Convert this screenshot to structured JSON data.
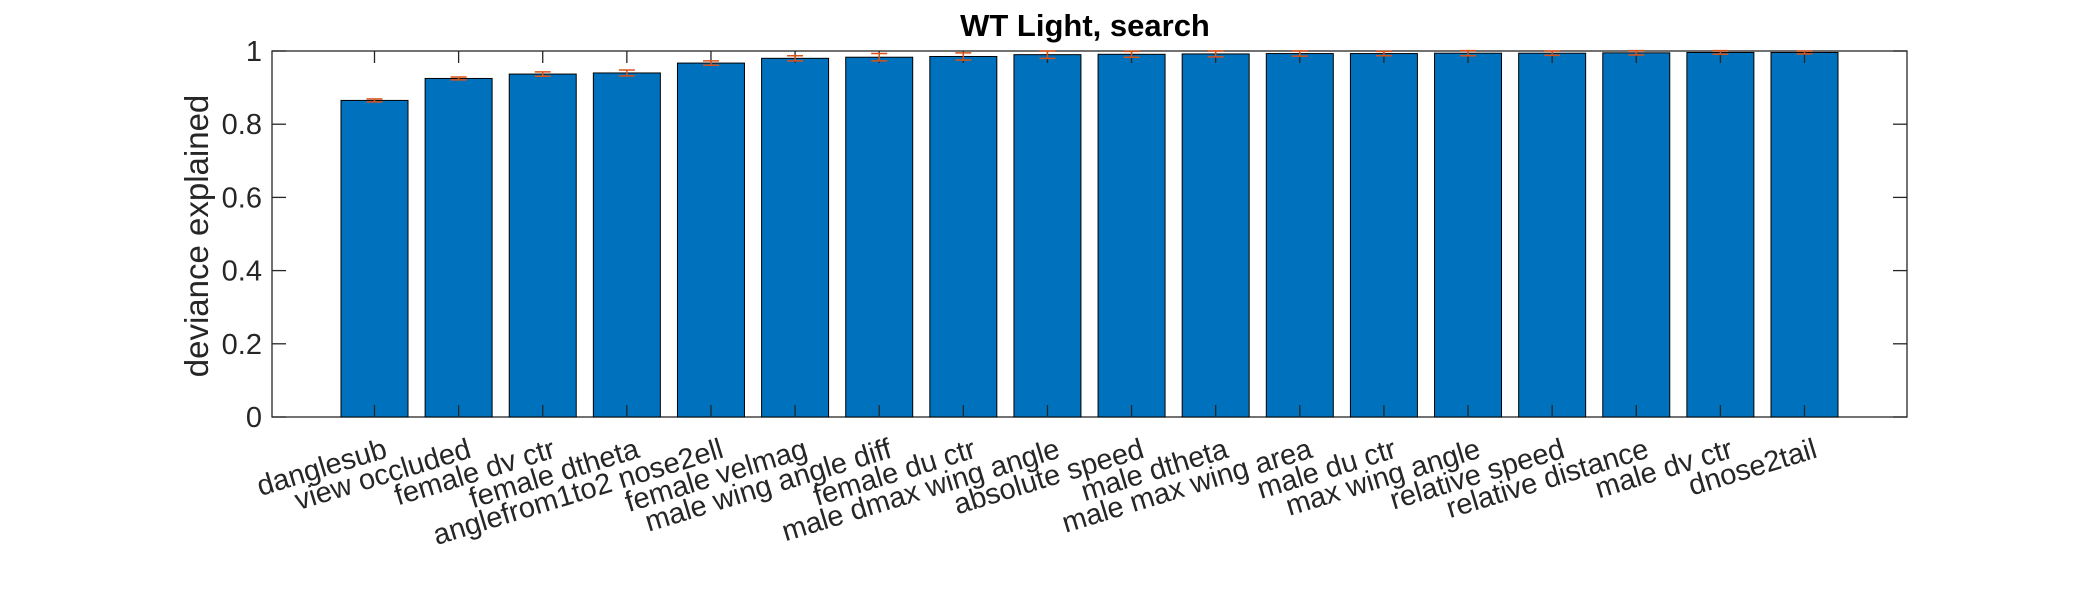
{
  "chart_data": {
    "type": "bar",
    "title": "WT Light, search",
    "xlabel": "",
    "ylabel": "deviance explained",
    "ylim": [
      0,
      1
    ],
    "yticks": [
      "0",
      "0.2",
      "0.4",
      "0.6",
      "0.8",
      "1"
    ],
    "categories": [
      "danglesub",
      "view occluded",
      "female dv ctr",
      "female dtheta",
      "anglefrom1to2 nose2ell",
      "female velmag",
      "male wing angle diff",
      "female du ctr",
      "male dmax wing angle",
      "absolute speed",
      "male dtheta",
      "male max wing area",
      "male du ctr",
      "max wing angle",
      "relative speed",
      "relative distance",
      "male dv ctr",
      "dnose2tail"
    ],
    "values": [
      0.865,
      0.925,
      0.937,
      0.94,
      0.967,
      0.98,
      0.983,
      0.985,
      0.99,
      0.991,
      0.992,
      0.993,
      0.993,
      0.994,
      0.994,
      0.995,
      0.996,
      0.996
    ],
    "errors": [
      0.004,
      0.004,
      0.006,
      0.008,
      0.006,
      0.007,
      0.01,
      0.01,
      0.01,
      0.008,
      0.008,
      0.007,
      0.006,
      0.007,
      0.006,
      0.006,
      0.005,
      0.004
    ],
    "grid": false,
    "bar_color": "#0072BD",
    "error_color": "#D95319",
    "axis_color": "#262626"
  }
}
